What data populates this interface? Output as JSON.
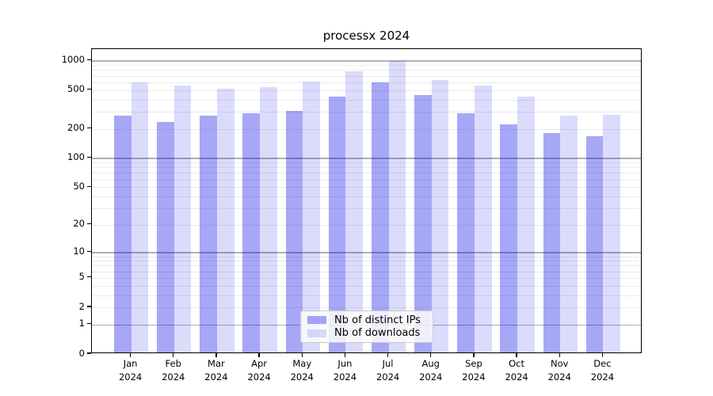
{
  "chart_data": {
    "type": "bar",
    "title": "processx 2024",
    "xlabel": "",
    "ylabel": "",
    "yscale": "log1p",
    "ylim": [
      0,
      1310
    ],
    "yticks": [
      1000,
      500,
      200,
      100,
      50,
      20,
      10,
      5,
      2,
      1,
      0
    ],
    "ytick_majors": [
      1,
      10,
      100,
      1000
    ],
    "grid": "on",
    "legend_position": "inside-bottom-center",
    "categories": [
      "Jan 2024",
      "Feb 2024",
      "Mar 2024",
      "Apr 2024",
      "May 2024",
      "Jun 2024",
      "Jul 2024",
      "Aug 2024",
      "Sep 2024",
      "Oct 2024",
      "Nov 2024",
      "Dec 2024"
    ],
    "series": [
      {
        "name": "Nb of distinct IPs",
        "key": "distinct-ips",
        "color": "rgba(0,0,235,0.345)",
        "values": [
          265,
          225,
          265,
          280,
          295,
          415,
          580,
          430,
          280,
          215,
          175,
          160
        ]
      },
      {
        "name": "Nb of downloads",
        "key": "downloads",
        "color": "rgba(0,0,235,0.14)",
        "values": [
          575,
          530,
          495,
          515,
          585,
          745,
          950,
          615,
          530,
          410,
          265,
          270
        ]
      }
    ]
  }
}
